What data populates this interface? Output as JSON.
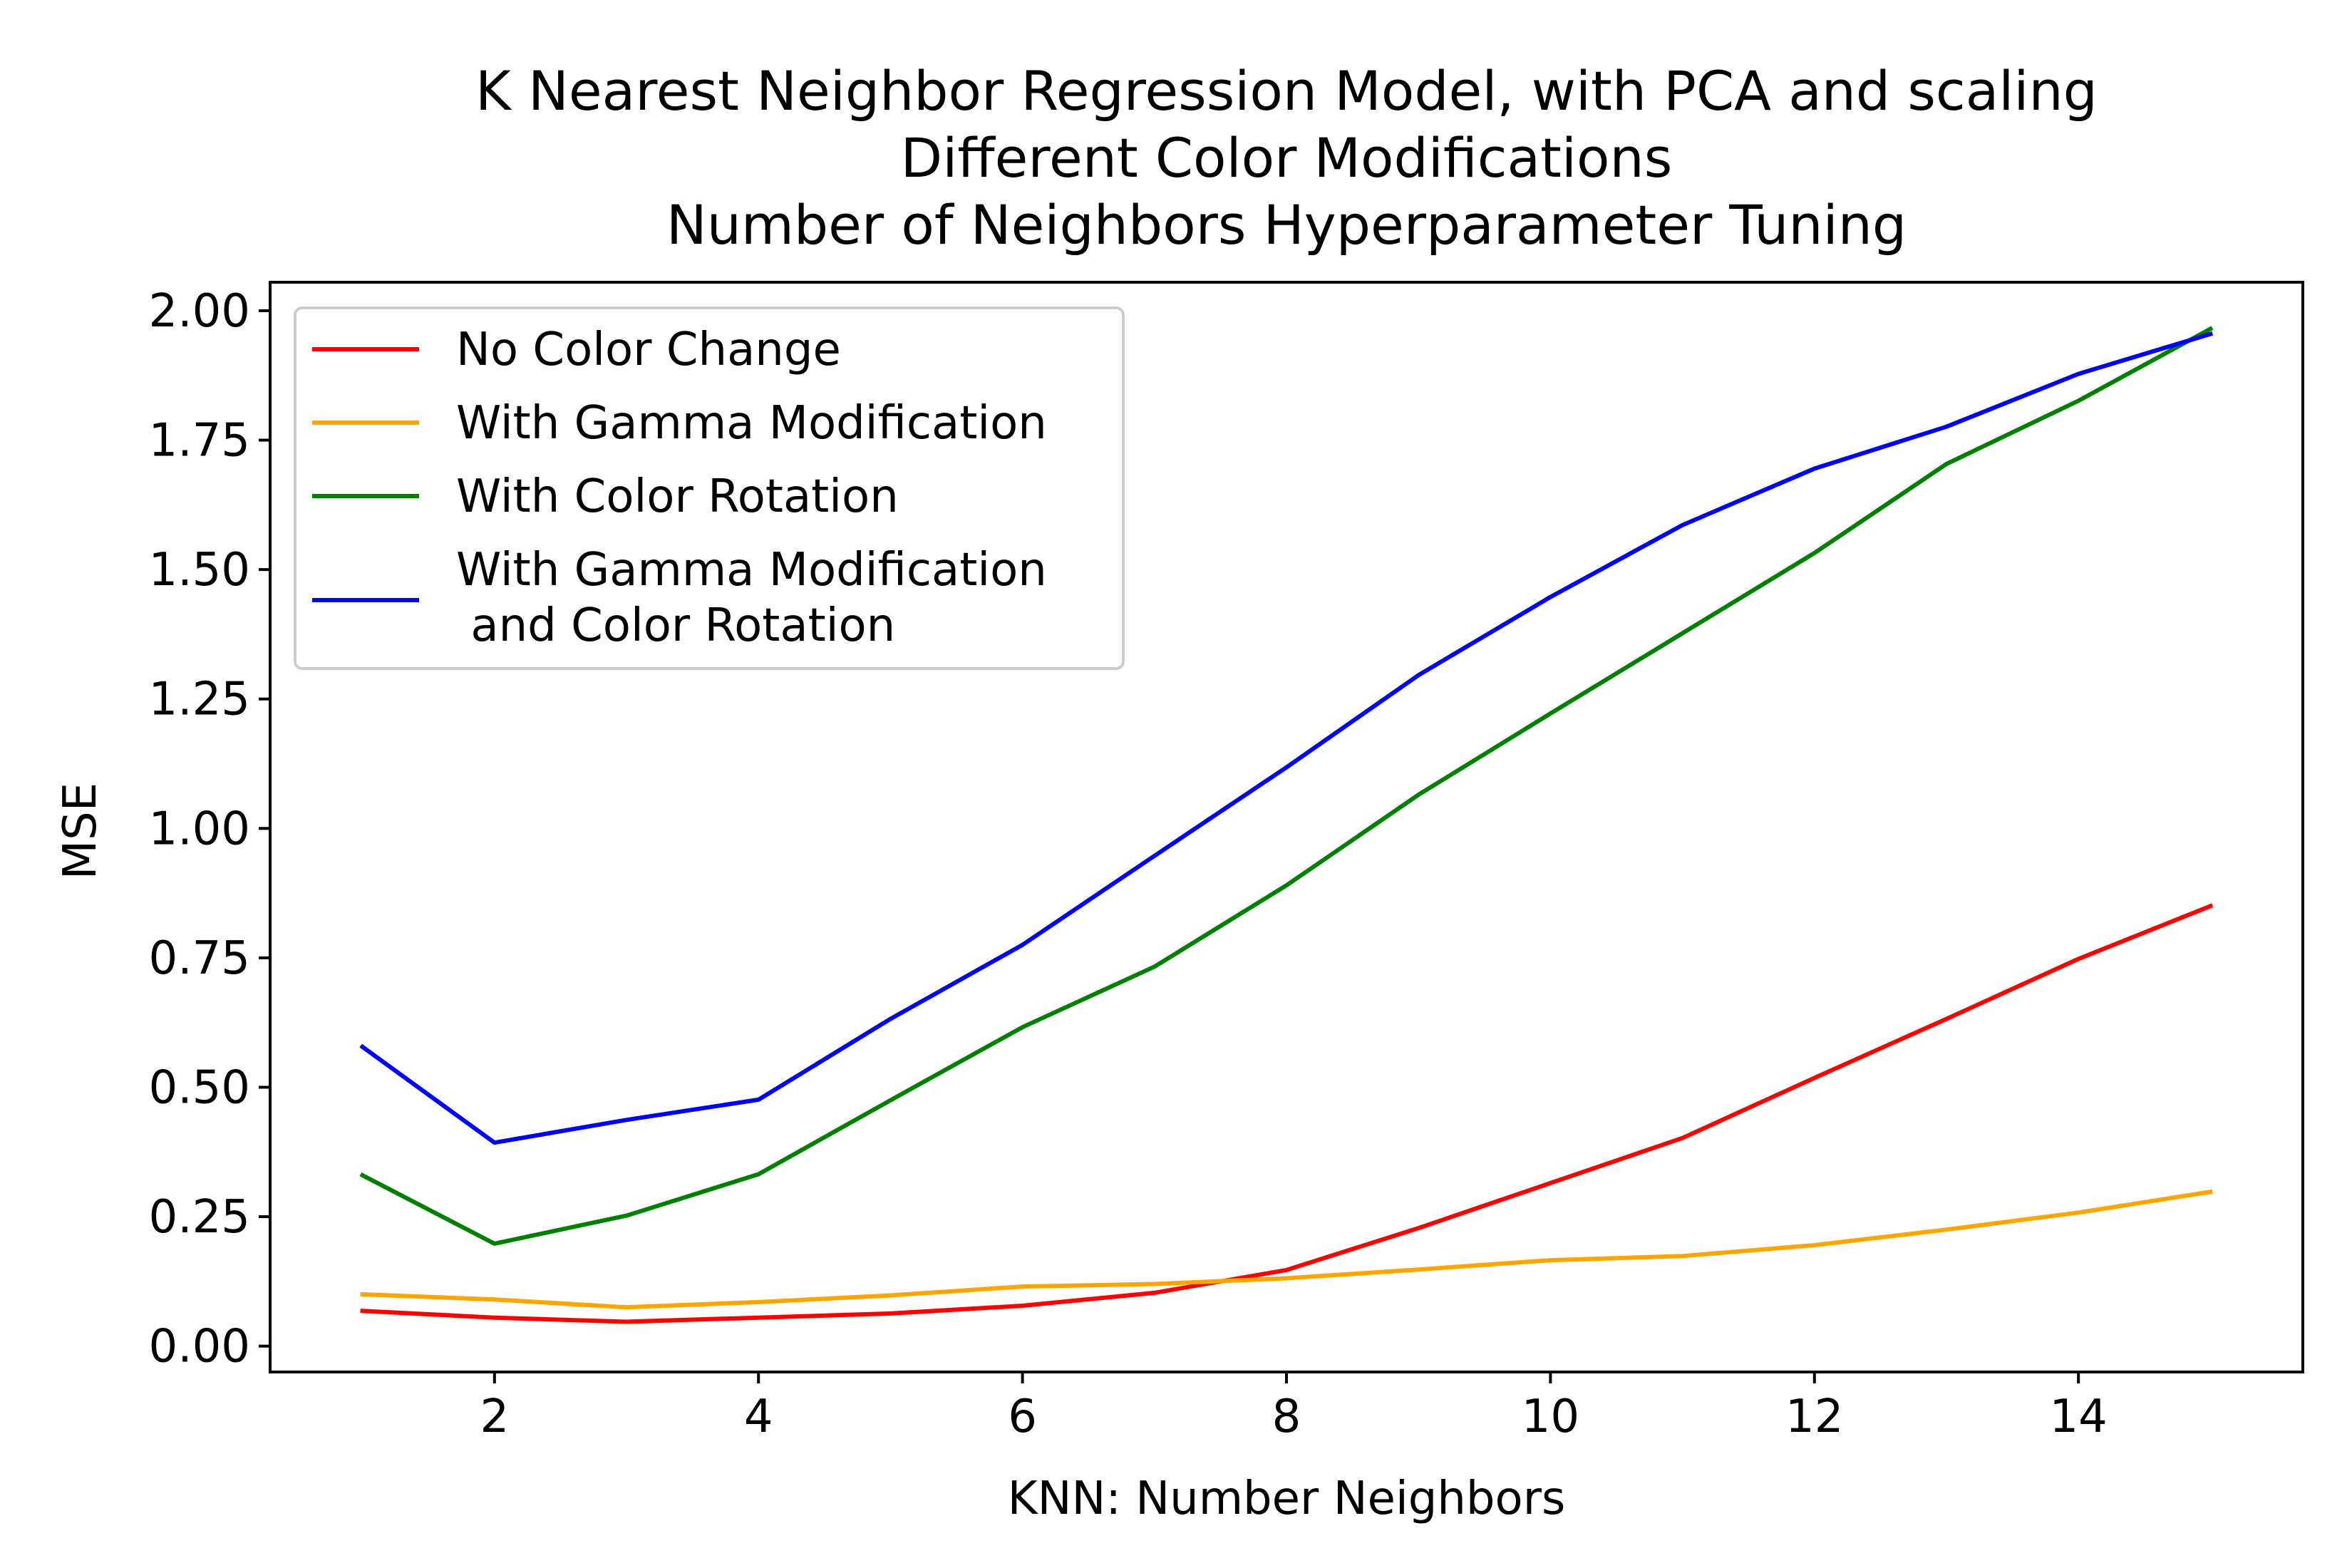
{
  "chart_data": {
    "type": "line",
    "title_lines": [
      "K Nearest Neighbor Regression Model, with PCA and scaling",
      "Different Color Modifications",
      "Number of Neighbors Hyperparameter Tuning"
    ],
    "xlabel": "KNN: Number Neighbors",
    "ylabel": "MSE",
    "xlim": [
      0.3,
      15.7
    ],
    "ylim": [
      -0.05,
      2.055
    ],
    "xticks": [
      2,
      4,
      6,
      8,
      10,
      12,
      14
    ],
    "yticks": [
      0.0,
      0.25,
      0.5,
      0.75,
      1.0,
      1.25,
      1.5,
      1.75,
      2.0
    ],
    "ytick_labels": [
      "0.00",
      "0.25",
      "0.50",
      "0.75",
      "1.00",
      "1.25",
      "1.50",
      "1.75",
      "2.00"
    ],
    "grid": false,
    "legend_position": "upper-left",
    "x": [
      1,
      2,
      3,
      4,
      5,
      6,
      7,
      8,
      9,
      10,
      11,
      12,
      13,
      14,
      15
    ],
    "series": [
      {
        "name_lines": [
          "No Color Change"
        ],
        "color": "#ff0000",
        "values": [
          0.068,
          0.055,
          0.047,
          0.055,
          0.063,
          0.078,
          0.103,
          0.147,
          0.228,
          0.315,
          0.402,
          0.518,
          0.632,
          0.748,
          0.85
        ]
      },
      {
        "name_lines": [
          "With Gamma Modification"
        ],
        "color": "#ffa500",
        "values": [
          0.1,
          0.09,
          0.075,
          0.085,
          0.098,
          0.115,
          0.12,
          0.131,
          0.148,
          0.166,
          0.174,
          0.195,
          0.225,
          0.258,
          0.298
        ]
      },
      {
        "name_lines": [
          "With Color Rotation"
        ],
        "color": "#008000",
        "values": [
          0.33,
          0.198,
          0.252,
          0.332,
          0.475,
          0.616,
          0.733,
          0.89,
          1.065,
          1.222,
          1.377,
          1.532,
          1.704,
          1.826,
          1.965
        ]
      },
      {
        "name_lines": [
          "With Gamma Modification",
          " and Color Rotation"
        ],
        "color": "#0000ff",
        "values": [
          0.578,
          0.393,
          0.437,
          0.476,
          0.632,
          0.775,
          0.947,
          1.118,
          1.296,
          1.447,
          1.586,
          1.695,
          1.776,
          1.878,
          1.955
        ]
      }
    ]
  }
}
